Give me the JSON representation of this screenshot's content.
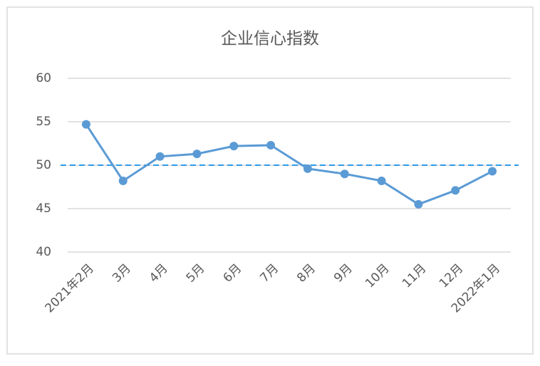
{
  "chart_data": {
    "type": "line",
    "title": "企业信心指数",
    "categories": [
      "2021年2月",
      "3月",
      "4月",
      "5月",
      "6月",
      "7月",
      "8月",
      "9月",
      "10月",
      "11月",
      "12月",
      "2022年1月"
    ],
    "values": [
      54.7,
      48.2,
      51.0,
      51.3,
      52.2,
      52.3,
      49.6,
      49.0,
      48.2,
      45.5,
      47.1,
      49.3
    ],
    "color": "#5b9bd5",
    "reference_line": 50,
    "reference_color": "#2e9be8",
    "ylim": [
      40,
      60
    ],
    "yticks": [
      40,
      45,
      50,
      55,
      60
    ],
    "grid": true
  }
}
